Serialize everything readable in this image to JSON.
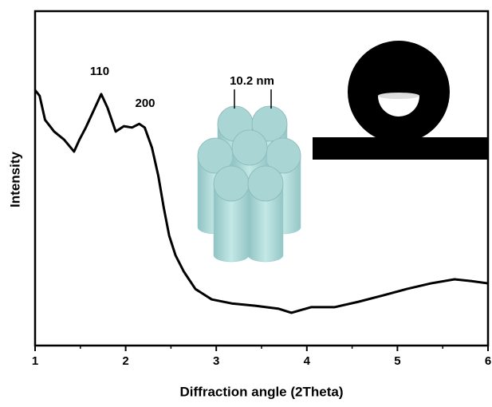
{
  "chart_data": {
    "type": "line",
    "x_label": "Diffraction angle (2Theta)",
    "y_label": "Intensity",
    "annotations": [
      "110",
      "200",
      "10.2 nm"
    ],
    "series": [
      {
        "color": "#000000",
        "x": [
          1.0,
          1.05,
          1.11,
          1.21,
          1.32,
          1.43,
          1.49,
          1.56,
          1.64,
          1.73,
          1.8,
          1.89,
          1.98,
          2.07,
          2.15,
          2.21,
          2.29,
          2.36,
          2.42,
          2.48,
          2.55,
          2.64,
          2.77,
          2.95,
          3.17,
          3.43,
          3.69,
          3.83,
          4.05,
          4.31,
          4.57,
          4.84,
          5.1,
          5.37,
          5.63,
          5.81,
          6.0
        ],
        "values": [
          76.4,
          74.7,
          67.5,
          64,
          61.6,
          58,
          61.6,
          65.2,
          69.9,
          75.2,
          71.1,
          64,
          65.6,
          65.2,
          66.3,
          65.2,
          59.2,
          50.8,
          41.3,
          32.9,
          27,
          22.2,
          16.9,
          13.8,
          12.6,
          11.9,
          11,
          9.8,
          11.5,
          11.5,
          13.1,
          15,
          16.9,
          18.6,
          19.8,
          19.3,
          18.6
        ]
      }
    ],
    "xlim": [
      1,
      6
    ],
    "ylim": [
      0,
      100
    ],
    "xticks": [
      1,
      2,
      3,
      4,
      5,
      6
    ],
    "xticks_minor": [
      1.5,
      2.5,
      3.5,
      4.5,
      5.5
    ]
  }
}
